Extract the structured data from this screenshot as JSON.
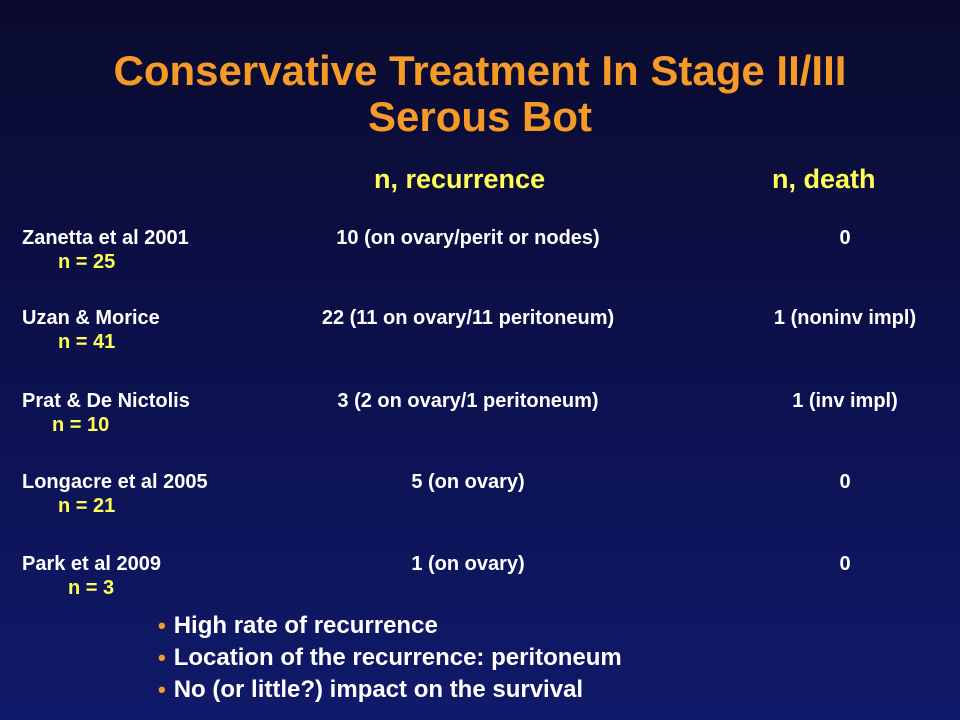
{
  "title": {
    "line1": "Conservative Treatment In Stage II/III",
    "line2": "Serous Bot"
  },
  "columns": {
    "recurrence": "n, recurrence",
    "death": "n, death"
  },
  "rows": [
    {
      "study": "Zanetta et al 2001",
      "n": "n = 25",
      "recurrence": "10 (on ovary/perit or nodes)",
      "death": "0"
    },
    {
      "study": "Uzan & Morice",
      "n": "n = 41",
      "recurrence": "22 (11 on ovary/11 peritoneum)",
      "death": "1 (noninv impl)"
    },
    {
      "study": "Prat & De Nictolis",
      "n": "n = 10",
      "recurrence": "3 (2 on ovary/1 peritoneum)",
      "death": "1 (inv impl)"
    },
    {
      "study": "Longacre et al 2005",
      "n": "n = 21",
      "recurrence": "5 (on ovary)",
      "death": "0"
    },
    {
      "study": "Park et al 2009",
      "n": "n = 3",
      "recurrence": "1 (on ovary)",
      "death": "0"
    }
  ],
  "bullets": [
    "High rate of recurrence",
    "Location of the recurrence: peritoneum",
    "No (or little?) impact on the survival"
  ],
  "colors": {
    "title": "#f59a27",
    "header": "#ffff55",
    "text": "#ffffff",
    "bullet": "#f59a27"
  }
}
